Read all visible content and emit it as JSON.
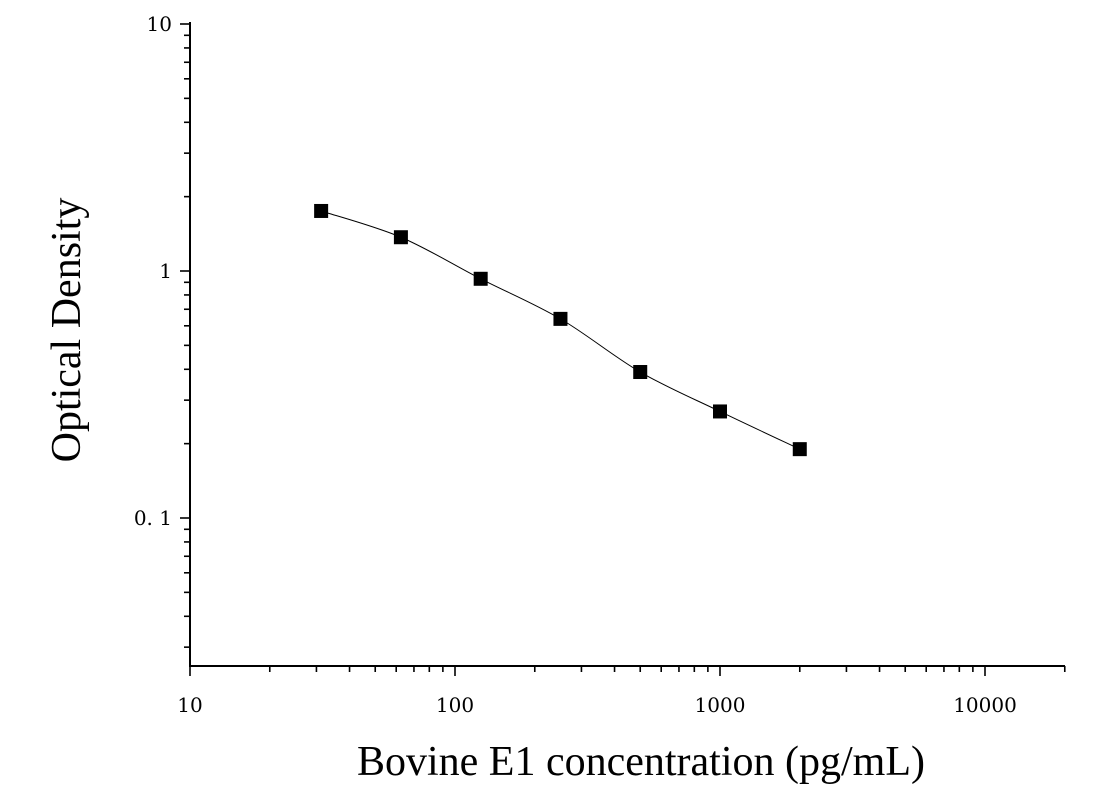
{
  "chart_data": {
    "type": "scatter",
    "title": "",
    "xlabel": "Bovine E1 concentration (pg/mL)",
    "ylabel": "Optical Density",
    "x_scale": "log",
    "y_scale": "log",
    "xlim": [
      10,
      20000
    ],
    "ylim": [
      0.025,
      10
    ],
    "x_ticks": [
      10,
      100,
      1000,
      10000
    ],
    "x_tick_labels": [
      "10",
      "100",
      "1000",
      "10000"
    ],
    "y_ticks": [
      0.1,
      1,
      10
    ],
    "y_tick_labels": [
      "0. 1",
      "1",
      "10"
    ],
    "grid": false,
    "legend": "none",
    "series": [
      {
        "marker": "square",
        "x": [
          31.25,
          62.5,
          125,
          250,
          500,
          1000,
          2000
        ],
        "y": [
          1.75,
          1.37,
          0.93,
          0.64,
          0.39,
          0.27,
          0.19
        ]
      }
    ],
    "fit_curve": true
  }
}
